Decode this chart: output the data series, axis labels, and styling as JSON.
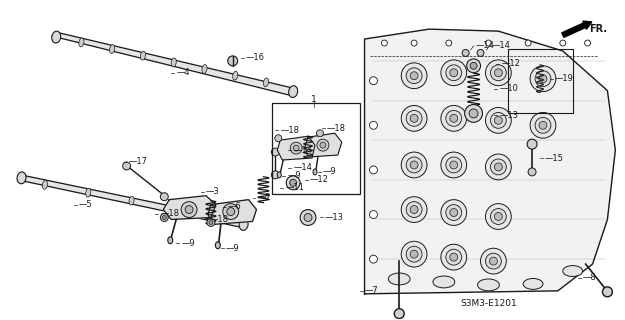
{
  "part_code": "S3M3-E1201",
  "background_color": "#ffffff",
  "line_color": "#1a1a1a",
  "figsize": [
    6.25,
    3.2
  ],
  "dpi": 100
}
